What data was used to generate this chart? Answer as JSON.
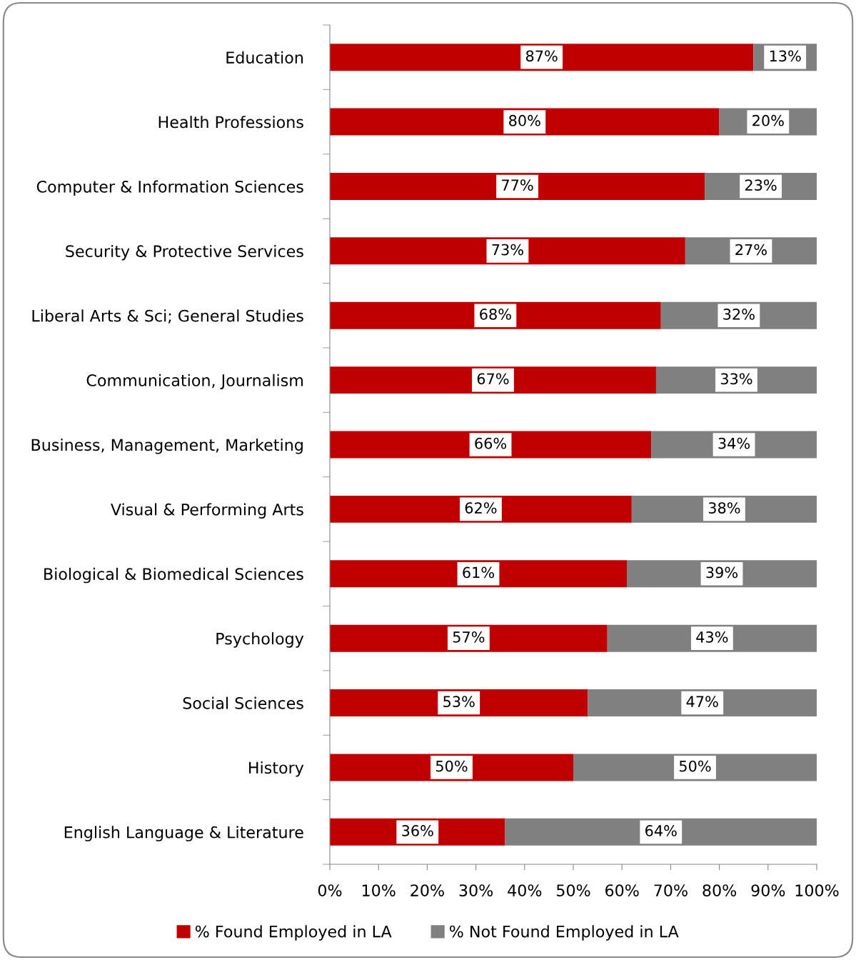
{
  "chart_data": {
    "type": "bar",
    "orientation": "horizontal",
    "stacked": true,
    "categories": [
      "Education",
      "Health Professions",
      "Computer & Information Sciences",
      "Security & Protective Services",
      "Liberal Arts & Sci; General Studies",
      "Communication, Journalism",
      "Business, Management, Marketing",
      "Visual & Performing Arts",
      "Biological & Biomedical Sciences",
      "Psychology",
      "Social Sciences",
      "History",
      "English Language & Literature"
    ],
    "series": [
      {
        "name": "% Found Employed in LA",
        "color": "#c00000",
        "values": [
          87,
          80,
          77,
          73,
          68,
          67,
          66,
          62,
          61,
          57,
          53,
          50,
          36
        ],
        "value_labels": [
          "87%",
          "80%",
          "77%",
          "73%",
          "68%",
          "67%",
          "66%",
          "62%",
          "61%",
          "57%",
          "53%",
          "50%",
          "36%"
        ]
      },
      {
        "name": "% Not Found Employed in LA",
        "color": "#808080",
        "values": [
          13,
          20,
          23,
          27,
          32,
          33,
          34,
          38,
          39,
          43,
          47,
          50,
          64
        ],
        "value_labels": [
          "13%",
          "20%",
          "23%",
          "27%",
          "32%",
          "33%",
          "34%",
          "38%",
          "39%",
          "43%",
          "47%",
          "50%",
          "64%"
        ]
      }
    ],
    "xlim": [
      0,
      100
    ],
    "xticks": [
      {
        "value": 0,
        "label": "0%"
      },
      {
        "value": 10,
        "label": "10%"
      },
      {
        "value": 20,
        "label": "20%"
      },
      {
        "value": 30,
        "label": "30%"
      },
      {
        "value": 40,
        "label": "40%"
      },
      {
        "value": 50,
        "label": "50%"
      },
      {
        "value": 60,
        "label": "60%"
      },
      {
        "value": 70,
        "label": "70%"
      },
      {
        "value": 80,
        "label": "80%"
      },
      {
        "value": 90,
        "label": "90%"
      },
      {
        "value": 100,
        "label": "100%"
      }
    ],
    "grid": false,
    "legend": "bottom"
  }
}
